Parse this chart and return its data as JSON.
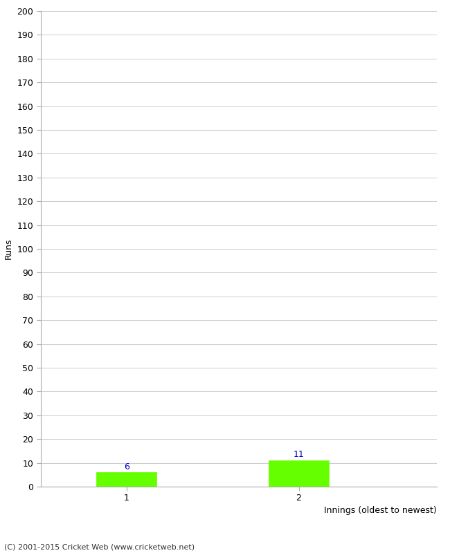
{
  "categories": [
    1,
    2
  ],
  "values": [
    6,
    11
  ],
  "bar_color": "#66ff00",
  "bar_edge_color": "#66ff00",
  "ylabel": "Runs",
  "xlabel": "Innings (oldest to newest)",
  "ylim": [
    0,
    200
  ],
  "yticks": [
    0,
    10,
    20,
    30,
    40,
    50,
    60,
    70,
    80,
    90,
    100,
    110,
    120,
    130,
    140,
    150,
    160,
    170,
    180,
    190,
    200
  ],
  "xticks": [
    1,
    2
  ],
  "value_label_color": "#0000cc",
  "footer": "(C) 2001-2015 Cricket Web (www.cricketweb.net)",
  "background_color": "#ffffff",
  "grid_color": "#cccccc",
  "bar_width": 0.35
}
